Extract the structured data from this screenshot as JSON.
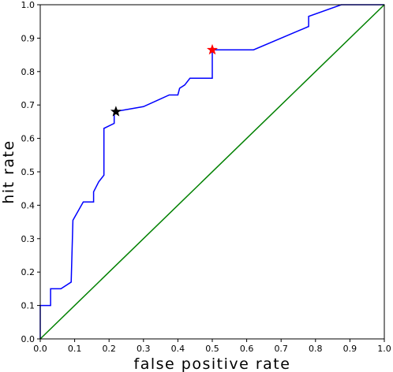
{
  "chart_data": {
    "type": "line",
    "xlabel": "false positive rate",
    "ylabel": "hit rate",
    "xlim": [
      0.0,
      1.0
    ],
    "ylim": [
      0.0,
      1.0
    ],
    "xticks": [
      "0.0",
      "0.1",
      "0.2",
      "0.3",
      "0.4",
      "0.5",
      "0.6",
      "0.7",
      "0.8",
      "0.9",
      "1.0"
    ],
    "yticks": [
      "0.0",
      "0.1",
      "0.2",
      "0.3",
      "0.4",
      "0.5",
      "0.6",
      "0.7",
      "0.8",
      "0.9",
      "1.0"
    ],
    "grid": false,
    "series": [
      {
        "color": "#0000ff",
        "x": [
          0.0,
          0.0,
          0.03,
          0.03,
          0.06,
          0.09,
          0.095,
          0.125,
          0.155,
          0.155,
          0.17,
          0.185,
          0.185,
          0.215,
          0.215,
          0.3,
          0.375,
          0.4,
          0.405,
          0.42,
          0.435,
          0.435,
          0.5,
          0.5,
          0.62,
          0.78,
          0.78,
          0.875,
          1.0
        ],
        "y": [
          0.0,
          0.1,
          0.1,
          0.15,
          0.15,
          0.17,
          0.355,
          0.41,
          0.41,
          0.44,
          0.47,
          0.49,
          0.63,
          0.645,
          0.68,
          0.695,
          0.73,
          0.73,
          0.75,
          0.76,
          0.78,
          0.78,
          0.78,
          0.865,
          0.865,
          0.935,
          0.965,
          1.0,
          1.0
        ]
      },
      {
        "color": "#008000",
        "x": [
          0.0,
          1.0
        ],
        "y": [
          0.0,
          1.0
        ]
      }
    ],
    "markers": [
      {
        "x": 0.22,
        "y": 0.68,
        "color": "#000000",
        "shape": "star"
      },
      {
        "x": 0.5,
        "y": 0.865,
        "color": "#ff0000",
        "shape": "star"
      }
    ]
  }
}
